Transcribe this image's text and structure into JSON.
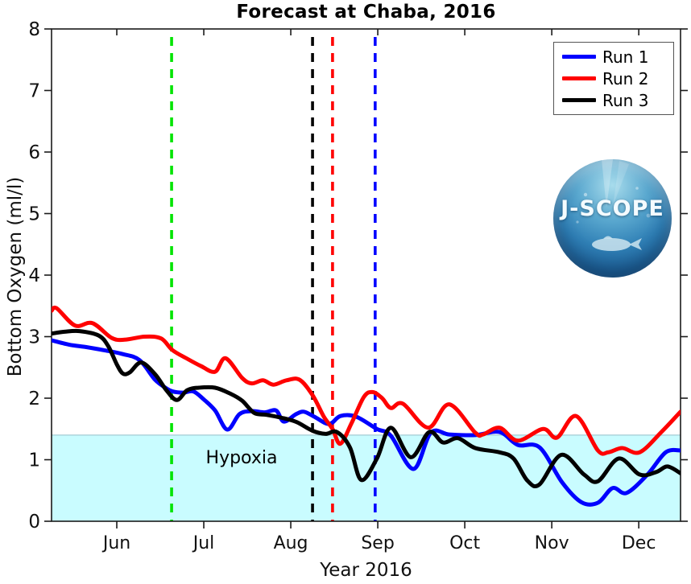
{
  "chart_data": {
    "type": "line",
    "title": "Forecast at Chaba, 2016",
    "xlabel": "Year 2016",
    "ylabel": "Bottom Oxygen (ml/l)",
    "x_units": "calendar month (6.0 = Jun 1, 6.5 = mid-Jun)",
    "xlim_months": [
      5.25,
      12.48
    ],
    "ylim": [
      0,
      8
    ],
    "yticks": [
      0,
      1,
      2,
      3,
      4,
      5,
      6,
      7,
      8
    ],
    "xticks": [
      {
        "month": 6,
        "label": "Jun"
      },
      {
        "month": 7,
        "label": "Jul"
      },
      {
        "month": 8,
        "label": "Aug"
      },
      {
        "month": 9,
        "label": "Sep"
      },
      {
        "month": 10,
        "label": "Oct"
      },
      {
        "month": 11,
        "label": "Nov"
      },
      {
        "month": 12,
        "label": "Dec"
      }
    ],
    "grid": false,
    "axis_color": "#1a1a1a",
    "legend": {
      "position": "top-right",
      "items": [
        {
          "label": "Run 1",
          "color": "#0000ff"
        },
        {
          "label": "Run 2",
          "color": "#ff0000"
        },
        {
          "label": "Run 3",
          "color": "#000000"
        }
      ]
    },
    "hypoxia_region": {
      "label": "Hypoxia",
      "max_value": 1.4,
      "fill": "#c9fcff",
      "edge": "#a3ccd4"
    },
    "vlines": [
      {
        "x_month": 6.63,
        "color": "#00e400",
        "style": "dashed"
      },
      {
        "x_month": 8.25,
        "color": "#000000",
        "style": "dashed"
      },
      {
        "x_month": 8.48,
        "color": "#ff0000",
        "style": "dashed"
      },
      {
        "x_month": 8.97,
        "color": "#0000ff",
        "style": "dashed"
      }
    ],
    "series": [
      {
        "name": "Run 1",
        "color": "#0000ff",
        "points": [
          [
            5.25,
            2.94
          ],
          [
            5.45,
            2.87
          ],
          [
            5.65,
            2.83
          ],
          [
            5.85,
            2.78
          ],
          [
            6.06,
            2.72
          ],
          [
            6.26,
            2.62
          ],
          [
            6.44,
            2.3
          ],
          [
            6.57,
            2.16
          ],
          [
            6.64,
            2.11
          ],
          [
            6.76,
            2.09
          ],
          [
            6.88,
            2.11
          ],
          [
            7.0,
            1.98
          ],
          [
            7.13,
            1.8
          ],
          [
            7.27,
            1.49
          ],
          [
            7.41,
            1.74
          ],
          [
            7.55,
            1.79
          ],
          [
            7.7,
            1.77
          ],
          [
            7.83,
            1.8
          ],
          [
            7.92,
            1.62
          ],
          [
            8.06,
            1.74
          ],
          [
            8.15,
            1.78
          ],
          [
            8.27,
            1.7
          ],
          [
            8.44,
            1.58
          ],
          [
            8.57,
            1.71
          ],
          [
            8.75,
            1.7
          ],
          [
            8.99,
            1.5
          ],
          [
            9.15,
            1.39
          ],
          [
            9.41,
            0.85
          ],
          [
            9.61,
            1.44
          ],
          [
            9.82,
            1.41
          ],
          [
            10.12,
            1.4
          ],
          [
            10.4,
            1.45
          ],
          [
            10.61,
            1.24
          ],
          [
            10.86,
            1.2
          ],
          [
            11.12,
            0.63
          ],
          [
            11.34,
            0.31
          ],
          [
            11.53,
            0.3
          ],
          [
            11.7,
            0.54
          ],
          [
            11.86,
            0.46
          ],
          [
            12.1,
            0.76
          ],
          [
            12.31,
            1.12
          ],
          [
            12.48,
            1.15
          ]
        ]
      },
      {
        "name": "Run 2",
        "color": "#ff0000",
        "points": [
          [
            5.25,
            3.42
          ],
          [
            5.31,
            3.46
          ],
          [
            5.52,
            3.18
          ],
          [
            5.72,
            3.22
          ],
          [
            5.94,
            2.98
          ],
          [
            6.09,
            2.95
          ],
          [
            6.32,
            3.0
          ],
          [
            6.51,
            2.97
          ],
          [
            6.64,
            2.78
          ],
          [
            6.81,
            2.64
          ],
          [
            6.97,
            2.52
          ],
          [
            7.13,
            2.43
          ],
          [
            7.25,
            2.65
          ],
          [
            7.44,
            2.33
          ],
          [
            7.55,
            2.24
          ],
          [
            7.68,
            2.29
          ],
          [
            7.8,
            2.22
          ],
          [
            7.95,
            2.29
          ],
          [
            8.1,
            2.3
          ],
          [
            8.25,
            2.05
          ],
          [
            8.38,
            1.7
          ],
          [
            8.48,
            1.5
          ],
          [
            8.57,
            1.26
          ],
          [
            8.7,
            1.6
          ],
          [
            8.84,
            2.02
          ],
          [
            8.94,
            2.1
          ],
          [
            9.05,
            2.0
          ],
          [
            9.15,
            1.84
          ],
          [
            9.29,
            1.91
          ],
          [
            9.58,
            1.52
          ],
          [
            9.82,
            1.9
          ],
          [
            10.12,
            1.44
          ],
          [
            10.21,
            1.41
          ],
          [
            10.4,
            1.52
          ],
          [
            10.61,
            1.31
          ],
          [
            10.9,
            1.5
          ],
          [
            11.06,
            1.36
          ],
          [
            11.28,
            1.71
          ],
          [
            11.53,
            1.15
          ],
          [
            11.65,
            1.12
          ],
          [
            11.81,
            1.19
          ],
          [
            12.01,
            1.12
          ],
          [
            12.26,
            1.45
          ],
          [
            12.48,
            1.78
          ]
        ]
      },
      {
        "name": "Run 3",
        "color": "#000000",
        "points": [
          [
            5.25,
            3.05
          ],
          [
            5.4,
            3.08
          ],
          [
            5.57,
            3.09
          ],
          [
            5.79,
            3.02
          ],
          [
            5.9,
            2.85
          ],
          [
            6.0,
            2.55
          ],
          [
            6.07,
            2.4
          ],
          [
            6.15,
            2.42
          ],
          [
            6.28,
            2.58
          ],
          [
            6.44,
            2.39
          ],
          [
            6.57,
            2.13
          ],
          [
            6.69,
            1.97
          ],
          [
            6.81,
            2.13
          ],
          [
            6.94,
            2.17
          ],
          [
            7.13,
            2.17
          ],
          [
            7.31,
            2.07
          ],
          [
            7.44,
            1.96
          ],
          [
            7.58,
            1.76
          ],
          [
            7.72,
            1.73
          ],
          [
            7.9,
            1.68
          ],
          [
            8.07,
            1.61
          ],
          [
            8.25,
            1.47
          ],
          [
            8.4,
            1.42
          ],
          [
            8.53,
            1.45
          ],
          [
            8.68,
            1.2
          ],
          [
            8.81,
            0.67
          ],
          [
            8.99,
            1.02
          ],
          [
            9.15,
            1.52
          ],
          [
            9.38,
            1.04
          ],
          [
            9.59,
            1.45
          ],
          [
            9.75,
            1.28
          ],
          [
            9.92,
            1.35
          ],
          [
            10.12,
            1.19
          ],
          [
            10.4,
            1.12
          ],
          [
            10.56,
            1.02
          ],
          [
            10.72,
            0.66
          ],
          [
            10.86,
            0.6
          ],
          [
            11.11,
            1.08
          ],
          [
            11.37,
            0.76
          ],
          [
            11.53,
            0.65
          ],
          [
            11.77,
            1.02
          ],
          [
            12.01,
            0.76
          ],
          [
            12.2,
            0.8
          ],
          [
            12.33,
            0.89
          ],
          [
            12.48,
            0.78
          ]
        ]
      }
    ]
  },
  "logo": {
    "text": "J-SCOPE"
  }
}
